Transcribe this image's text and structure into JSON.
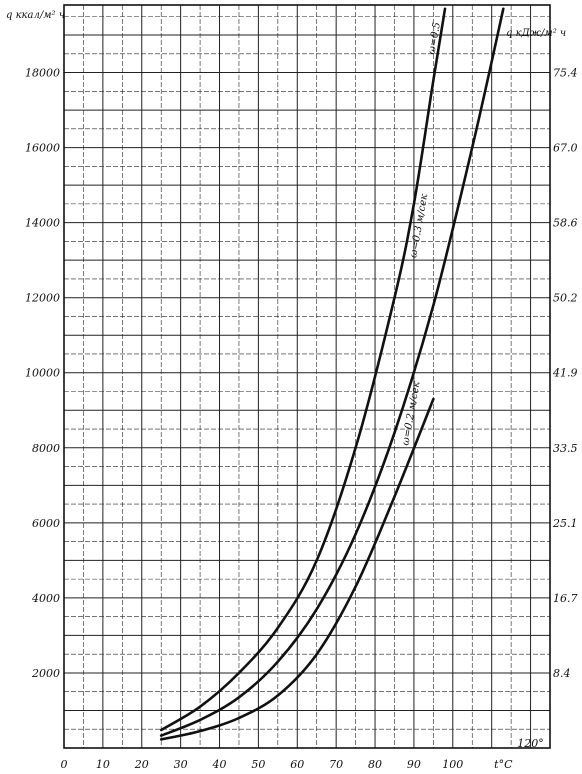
{
  "chart_data": {
    "type": "line",
    "title": "",
    "xlabel": "t°C",
    "ylabel_left": "q ккал/м² ч",
    "ylabel_right": "q кДж/м² ч",
    "xlim": [
      0,
      125
    ],
    "ylim": [
      0,
      19800
    ],
    "grid": true,
    "x_ticks": [
      {
        "value": 0,
        "label": "0"
      },
      {
        "value": 10,
        "label": "10"
      },
      {
        "value": 20,
        "label": "20"
      },
      {
        "value": 30,
        "label": "30"
      },
      {
        "value": 40,
        "label": "40"
      },
      {
        "value": 50,
        "label": "50"
      },
      {
        "value": 60,
        "label": "60"
      },
      {
        "value": 70,
        "label": "70"
      },
      {
        "value": 80,
        "label": "80"
      },
      {
        "value": 90,
        "label": "90"
      },
      {
        "value": 100,
        "label": "100"
      }
    ],
    "x_extra_labels": [
      {
        "value": 113,
        "label": "t°C"
      },
      {
        "value": 120,
        "label": "120°"
      }
    ],
    "y_left_ticks": [
      {
        "value": 2000,
        "label": "2000"
      },
      {
        "value": 4000,
        "label": "4000"
      },
      {
        "value": 6000,
        "label": "6000"
      },
      {
        "value": 8000,
        "label": "8000"
      },
      {
        "value": 10000,
        "label": "10000"
      },
      {
        "value": 12000,
        "label": "12000"
      },
      {
        "value": 14000,
        "label": "14000"
      },
      {
        "value": 16000,
        "label": "16000"
      },
      {
        "value": 18000,
        "label": "18000"
      }
    ],
    "y_right_ticks": [
      {
        "value": 2000,
        "label": "8.4"
      },
      {
        "value": 4000,
        "label": "16.7"
      },
      {
        "value": 6000,
        "label": "25.1"
      },
      {
        "value": 8000,
        "label": "33.5"
      },
      {
        "value": 10000,
        "label": "41.9"
      },
      {
        "value": 12000,
        "label": "50.2"
      },
      {
        "value": 14000,
        "label": "58.6"
      },
      {
        "value": 16000,
        "label": "67.0"
      },
      {
        "value": 18000,
        "label": "75.4"
      }
    ],
    "series": [
      {
        "name": "ω=0.5",
        "label_at": [
          96,
          18900
        ],
        "x": [
          25,
          35,
          45,
          55,
          65,
          75,
          85,
          90,
          95,
          98
        ],
        "values": [
          480,
          1100,
          2000,
          3200,
          5000,
          8000,
          12000,
          14500,
          17800,
          19700
        ]
      },
      {
        "name": "ω=0.3 м/сек",
        "label_at": [
          92,
          13900
        ],
        "x": [
          25,
          35,
          45,
          55,
          65,
          75,
          85,
          95,
          105,
          113
        ],
        "values": [
          330,
          750,
          1350,
          2300,
          3700,
          5700,
          8400,
          11800,
          16000,
          19700
        ]
      },
      {
        "name": "ω=0.2 м/сек",
        "label_at": [
          90,
          8900
        ],
        "x": [
          25,
          35,
          45,
          55,
          65,
          75,
          85,
          95
        ],
        "values": [
          230,
          450,
          800,
          1400,
          2500,
          4300,
          6700,
          9300
        ]
      }
    ]
  }
}
